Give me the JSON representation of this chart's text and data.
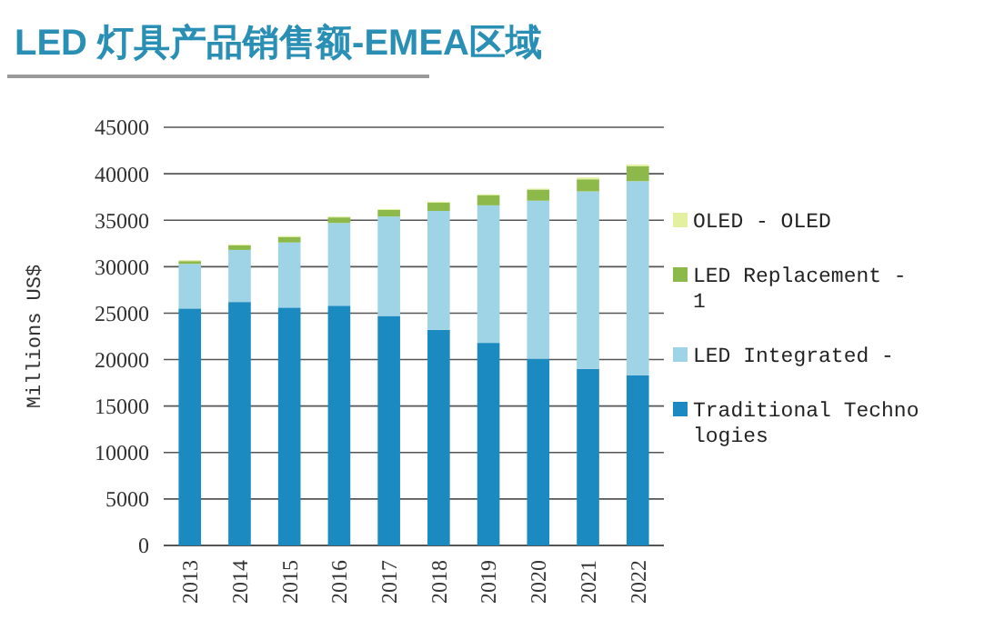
{
  "chart_data": {
    "type": "bar",
    "title": "LED 灯具产品销售额-EMEA区域",
    "ylabel": "Millions US$",
    "stacked": true,
    "grid": "y",
    "legend": "right",
    "categories": [
      "2013",
      "2014",
      "2015",
      "2016",
      "2017",
      "2018",
      "2019",
      "2020",
      "2021",
      "2022"
    ],
    "ylim": [
      0,
      45000
    ],
    "yticks": [
      0,
      5000,
      10000,
      15000,
      20000,
      25000,
      30000,
      35000,
      40000,
      45000
    ],
    "series": [
      {
        "name": "Traditional Technologies",
        "color": "#1a8ac0",
        "values": [
          25500,
          26200,
          25600,
          25800,
          24700,
          23200,
          21800,
          20100,
          19000,
          18300
        ]
      },
      {
        "name": "LED Integrated -",
        "color": "#9fd3e6",
        "values": [
          4800,
          5600,
          7000,
          8900,
          10700,
          12800,
          14800,
          17000,
          19100,
          20900
        ]
      },
      {
        "name": "LED Replacement - 1",
        "color": "#8db84a",
        "values": [
          300,
          500,
          600,
          600,
          700,
          900,
          1100,
          1200,
          1300,
          1600
        ]
      },
      {
        "name": "OLED - OLED",
        "color": "#e2f0a0",
        "values": [
          100,
          100,
          100,
          100,
          100,
          100,
          100,
          100,
          200,
          200
        ]
      }
    ]
  }
}
